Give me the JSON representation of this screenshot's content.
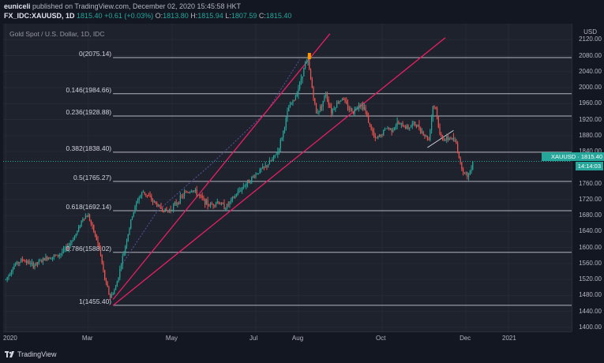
{
  "header": {
    "publisher": "euniceli",
    "published_text": "published on TradingView.com, December 02, 2020 15:45:58 HKT",
    "symbol": "FX_IDC:XAUUSD, 1D",
    "last": "1815.40",
    "change": "+0.61 (+0.03%)",
    "o_label": "O:",
    "o": "1813.80",
    "h_label": "H:",
    "h": "1815.94",
    "l_label": "L:",
    "l": "1807.59",
    "c_label": "C:",
    "c": "1815.40"
  },
  "footer": {
    "brand": "TradingView"
  },
  "colors": {
    "up": "#26a69a",
    "down": "#ef5350",
    "channel": "#e91e63",
    "fib_line": "#b2b5be",
    "background": "#1e222d"
  },
  "chart_data": {
    "type": "candlestick",
    "title": "Gold Spot / U.S. Dollar, 1D, IDC",
    "y_unit": "USD",
    "ylim": [
      1390,
      2160
    ],
    "y_ticks": [
      "2120.00",
      "2080.00",
      "2040.00",
      "2000.00",
      "1960.00",
      "1920.00",
      "1880.00",
      "1840.00",
      "1800.00",
      "1760.00",
      "1720.00",
      "1680.00",
      "1640.00",
      "1600.00",
      "1560.00",
      "1520.00",
      "1480.00",
      "1440.00",
      "1400.00"
    ],
    "x_ticks": [
      {
        "label": "2020",
        "day": 0
      },
      {
        "label": "Mar",
        "day": 60
      },
      {
        "label": "May",
        "day": 121
      },
      {
        "label": "Jul",
        "day": 182
      },
      {
        "label": "Aug",
        "day": 213
      },
      {
        "label": "Oct",
        "day": 274
      },
      {
        "label": "Dec",
        "day": 335
      },
      {
        "label": "2021",
        "day": 366
      }
    ],
    "xlim_days": [
      -2,
      412
    ],
    "fib_levels": [
      {
        "label": "0(2075.14)",
        "value": 2075.14
      },
      {
        "label": "0.146(1984.66)",
        "value": 1984.66
      },
      {
        "label": "0.236(1928.88)",
        "value": 1928.88
      },
      {
        "label": "0.382(1838.40)",
        "value": 1838.4
      },
      {
        "label": "0.5(1765.27)",
        "value": 1765.27
      },
      {
        "label": "0.618(1692.14)",
        "value": 1692.14
      },
      {
        "label": "0.786(1588.02)",
        "value": 1588.02
      },
      {
        "label": "1(1455.40)",
        "value": 1455.4
      }
    ],
    "channel_lines": [
      {
        "from": {
          "day": 78,
          "price": 1470
        },
        "to": {
          "day": 236,
          "price": 2135
        }
      },
      {
        "from": {
          "day": 78,
          "price": 1455
        },
        "to": {
          "day": 320,
          "price": 2125
        }
      }
    ],
    "short_line": {
      "from": {
        "day": 307,
        "price": 1850
      },
      "to": {
        "day": 326,
        "price": 1893
      }
    },
    "dotted_path": [
      {
        "day": 85,
        "price": 1560
      },
      {
        "day": 110,
        "price": 1690
      },
      {
        "day": 150,
        "price": 1810
      },
      {
        "day": 190,
        "price": 1940
      },
      {
        "day": 214,
        "price": 2070
      }
    ],
    "last_price": {
      "symbol": "XAUUSD",
      "value": 1815.4,
      "label": "1815.40",
      "countdown": "14:14:03"
    },
    "close_path": [
      {
        "day": 0,
        "price": 1520
      },
      {
        "day": 6,
        "price": 1555
      },
      {
        "day": 12,
        "price": 1570
      },
      {
        "day": 20,
        "price": 1555
      },
      {
        "day": 30,
        "price": 1575
      },
      {
        "day": 38,
        "price": 1580
      },
      {
        "day": 45,
        "price": 1600
      },
      {
        "day": 52,
        "price": 1640
      },
      {
        "day": 56,
        "price": 1675
      },
      {
        "day": 60,
        "price": 1680
      },
      {
        "day": 64,
        "price": 1640
      },
      {
        "day": 68,
        "price": 1600
      },
      {
        "day": 72,
        "price": 1520
      },
      {
        "day": 76,
        "price": 1475
      },
      {
        "day": 80,
        "price": 1500
      },
      {
        "day": 84,
        "price": 1560
      },
      {
        "day": 88,
        "price": 1620
      },
      {
        "day": 92,
        "price": 1680
      },
      {
        "day": 96,
        "price": 1720
      },
      {
        "day": 100,
        "price": 1740
      },
      {
        "day": 106,
        "price": 1720
      },
      {
        "day": 112,
        "price": 1700
      },
      {
        "day": 118,
        "price": 1690
      },
      {
        "day": 124,
        "price": 1710
      },
      {
        "day": 130,
        "price": 1735
      },
      {
        "day": 136,
        "price": 1745
      },
      {
        "day": 142,
        "price": 1725
      },
      {
        "day": 148,
        "price": 1705
      },
      {
        "day": 154,
        "price": 1715
      },
      {
        "day": 160,
        "price": 1700
      },
      {
        "day": 166,
        "price": 1725
      },
      {
        "day": 172,
        "price": 1750
      },
      {
        "day": 178,
        "price": 1770
      },
      {
        "day": 184,
        "price": 1790
      },
      {
        "day": 190,
        "price": 1805
      },
      {
        "day": 194,
        "price": 1820
      },
      {
        "day": 198,
        "price": 1840
      },
      {
        "day": 202,
        "price": 1890
      },
      {
        "day": 206,
        "price": 1950
      },
      {
        "day": 210,
        "price": 1970
      },
      {
        "day": 214,
        "price": 2010
      },
      {
        "day": 218,
        "price": 2060
      },
      {
        "day": 220,
        "price": 2065
      },
      {
        "day": 223,
        "price": 2000
      },
      {
        "day": 226,
        "price": 1935
      },
      {
        "day": 229,
        "price": 1950
      },
      {
        "day": 233,
        "price": 1985
      },
      {
        "day": 237,
        "price": 1940
      },
      {
        "day": 241,
        "price": 1960
      },
      {
        "day": 245,
        "price": 1975
      },
      {
        "day": 249,
        "price": 1950
      },
      {
        "day": 253,
        "price": 1940
      },
      {
        "day": 257,
        "price": 1960
      },
      {
        "day": 261,
        "price": 1950
      },
      {
        "day": 265,
        "price": 1905
      },
      {
        "day": 269,
        "price": 1870
      },
      {
        "day": 273,
        "price": 1880
      },
      {
        "day": 277,
        "price": 1900
      },
      {
        "day": 281,
        "price": 1895
      },
      {
        "day": 285,
        "price": 1910
      },
      {
        "day": 289,
        "price": 1905
      },
      {
        "day": 293,
        "price": 1900
      },
      {
        "day": 297,
        "price": 1910
      },
      {
        "day": 301,
        "price": 1900
      },
      {
        "day": 305,
        "price": 1880
      },
      {
        "day": 308,
        "price": 1870
      },
      {
        "day": 311,
        "price": 1955
      },
      {
        "day": 313,
        "price": 1950
      },
      {
        "day": 316,
        "price": 1880
      },
      {
        "day": 320,
        "price": 1870
      },
      {
        "day": 324,
        "price": 1875
      },
      {
        "day": 328,
        "price": 1860
      },
      {
        "day": 331,
        "price": 1810
      },
      {
        "day": 334,
        "price": 1785
      },
      {
        "day": 337,
        "price": 1780
      },
      {
        "day": 340,
        "price": 1815
      }
    ]
  }
}
